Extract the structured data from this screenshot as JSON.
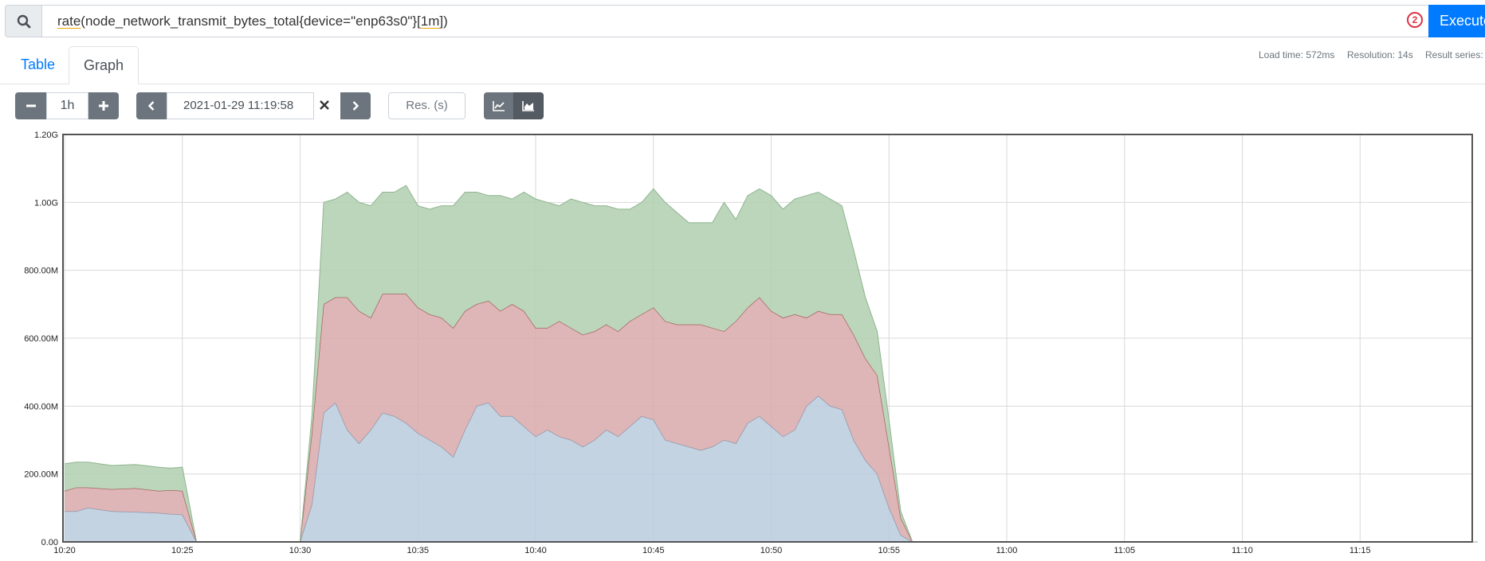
{
  "query": {
    "parts": [
      "rate",
      "(node_network_transmit_bytes_total{device=\"enp63s0\"}[",
      "1m",
      "])"
    ],
    "error_count": "2",
    "execute_label": "Execute"
  },
  "tabs": [
    {
      "label": "Table"
    },
    {
      "label": "Graph"
    }
  ],
  "stats": {
    "load_time": "Load time: 572ms",
    "resolution": "Resolution: 14s",
    "result_series": "Result series:"
  },
  "controls": {
    "range": "1h",
    "end_time": "2021-01-29 11:19:58",
    "res_placeholder": "Res. (s)"
  },
  "icons": [
    "search-icon",
    "minus-icon",
    "plus-icon",
    "chevron-left-icon",
    "close-icon",
    "chevron-right-icon",
    "line-chart-icon",
    "area-chart-icon"
  ],
  "colors": {
    "execute": "#007bff",
    "error": "#dc3545"
  },
  "chart_data": {
    "type": "area",
    "stacked": true,
    "y_ticks": [
      "0.00",
      "200.00M",
      "400.00M",
      "600.00M",
      "800.00M",
      "1.00G",
      "1.20G"
    ],
    "ylim": [
      0,
      1200000000.0
    ],
    "x_ticks": [
      "10:20",
      "10:25",
      "10:30",
      "10:35",
      "10:40",
      "10:45",
      "10:50",
      "10:55",
      "11:00",
      "11:05",
      "11:10",
      "11:15"
    ],
    "xlim_minutes": [
      0,
      60
    ],
    "grid": true,
    "series": [
      {
        "color": "#b8cbdd",
        "stroke": "#7f93aa",
        "points": [
          [
            0,
            90000000.0
          ],
          [
            0.5,
            90000000.0
          ],
          [
            1,
            100000000.0
          ],
          [
            2,
            90000000.0
          ],
          [
            3,
            88000000.0
          ],
          [
            4,
            85000000.0
          ],
          [
            4.5,
            82000000.0
          ],
          [
            5,
            80000000.0
          ],
          [
            5.6,
            0
          ],
          [
            10,
            0
          ],
          [
            10.5,
            110000000.0
          ],
          [
            11,
            380000000.0
          ],
          [
            11.5,
            410000000.0
          ],
          [
            12,
            330000000.0
          ],
          [
            12.5,
            290000000.0
          ],
          [
            13,
            330000000.0
          ],
          [
            13.5,
            380000000.0
          ],
          [
            14,
            370000000.0
          ],
          [
            14.5,
            350000000.0
          ],
          [
            15,
            320000000.0
          ],
          [
            15.5,
            300000000.0
          ],
          [
            16,
            280000000.0
          ],
          [
            16.5,
            250000000.0
          ],
          [
            17,
            330000000.0
          ],
          [
            17.5,
            400000000.0
          ],
          [
            18,
            410000000.0
          ],
          [
            18.5,
            370000000.0
          ],
          [
            19,
            370000000.0
          ],
          [
            19.5,
            340000000.0
          ],
          [
            20,
            310000000.0
          ],
          [
            20.5,
            330000000.0
          ],
          [
            21,
            310000000.0
          ],
          [
            21.5,
            300000000.0
          ],
          [
            22,
            280000000.0
          ],
          [
            22.5,
            300000000.0
          ],
          [
            23,
            330000000.0
          ],
          [
            23.5,
            310000000.0
          ],
          [
            24,
            340000000.0
          ],
          [
            24.5,
            370000000.0
          ],
          [
            25,
            360000000.0
          ],
          [
            25.5,
            300000000.0
          ],
          [
            26,
            290000000.0
          ],
          [
            26.5,
            280000000.0
          ],
          [
            27,
            270000000.0
          ],
          [
            27.5,
            280000000.0
          ],
          [
            28,
            300000000.0
          ],
          [
            28.5,
            290000000.0
          ],
          [
            29,
            350000000.0
          ],
          [
            29.5,
            370000000.0
          ],
          [
            30,
            340000000.0
          ],
          [
            30.5,
            310000000.0
          ],
          [
            31,
            330000000.0
          ],
          [
            31.5,
            400000000.0
          ],
          [
            32,
            430000000.0
          ],
          [
            32.5,
            400000000.0
          ],
          [
            33,
            390000000.0
          ],
          [
            33.5,
            300000000.0
          ],
          [
            34,
            240000000.0
          ],
          [
            34.5,
            200000000.0
          ],
          [
            35,
            100000000.0
          ],
          [
            35.5,
            20000000.0
          ],
          [
            36,
            0
          ],
          [
            60,
            0
          ]
        ]
      },
      {
        "color": "#d8a9aa",
        "stroke": "#a34a4a",
        "points": [
          [
            0,
            60000000.0
          ],
          [
            0.5,
            70000000.0
          ],
          [
            1,
            60000000.0
          ],
          [
            2,
            65000000.0
          ],
          [
            3,
            70000000.0
          ],
          [
            4,
            65000000.0
          ],
          [
            4.5,
            70000000.0
          ],
          [
            5,
            70000000.0
          ],
          [
            5.6,
            0
          ],
          [
            10,
            0
          ],
          [
            10.5,
            210000000.0
          ],
          [
            11,
            320000000.0
          ],
          [
            11.5,
            310000000.0
          ],
          [
            12,
            390000000.0
          ],
          [
            12.5,
            390000000.0
          ],
          [
            13,
            330000000.0
          ],
          [
            13.5,
            350000000.0
          ],
          [
            14,
            360000000.0
          ],
          [
            14.5,
            380000000.0
          ],
          [
            15,
            370000000.0
          ],
          [
            15.5,
            370000000.0
          ],
          [
            16,
            380000000.0
          ],
          [
            16.5,
            380000000.0
          ],
          [
            17,
            350000000.0
          ],
          [
            17.5,
            300000000.0
          ],
          [
            18,
            300000000.0
          ],
          [
            18.5,
            310000000.0
          ],
          [
            19,
            330000000.0
          ],
          [
            19.5,
            340000000.0
          ],
          [
            20,
            320000000.0
          ],
          [
            20.5,
            300000000.0
          ],
          [
            21,
            340000000.0
          ],
          [
            21.5,
            330000000.0
          ],
          [
            22,
            330000000.0
          ],
          [
            22.5,
            320000000.0
          ],
          [
            23,
            310000000.0
          ],
          [
            23.5,
            310000000.0
          ],
          [
            24,
            310000000.0
          ],
          [
            24.5,
            300000000.0
          ],
          [
            25,
            330000000.0
          ],
          [
            25.5,
            350000000.0
          ],
          [
            26,
            350000000.0
          ],
          [
            26.5,
            360000000.0
          ],
          [
            27,
            370000000.0
          ],
          [
            27.5,
            350000000.0
          ],
          [
            28,
            320000000.0
          ],
          [
            28.5,
            360000000.0
          ],
          [
            29,
            340000000.0
          ],
          [
            29.5,
            350000000.0
          ],
          [
            30,
            340000000.0
          ],
          [
            30.5,
            350000000.0
          ],
          [
            31,
            340000000.0
          ],
          [
            31.5,
            260000000.0
          ],
          [
            32,
            250000000.0
          ],
          [
            32.5,
            270000000.0
          ],
          [
            33,
            280000000.0
          ],
          [
            33.5,
            310000000.0
          ],
          [
            34,
            300000000.0
          ],
          [
            34.5,
            290000000.0
          ],
          [
            35,
            180000000.0
          ],
          [
            35.5,
            50000000.0
          ],
          [
            36,
            0
          ],
          [
            60,
            0
          ]
        ]
      },
      {
        "color": "#b0cfb0",
        "stroke": "#8fb48f",
        "points": [
          [
            0,
            80000000.0
          ],
          [
            0.5,
            75000000.0
          ],
          [
            1,
            75000000.0
          ],
          [
            2,
            70000000.0
          ],
          [
            3,
            70000000.0
          ],
          [
            4,
            70000000.0
          ],
          [
            4.5,
            65000000.0
          ],
          [
            5,
            70000000.0
          ],
          [
            5.6,
            0
          ],
          [
            10,
            0
          ],
          [
            10.5,
            50000000.0
          ],
          [
            11,
            300000000.0
          ],
          [
            11.5,
            290000000.0
          ],
          [
            12,
            310000000.0
          ],
          [
            12.5,
            320000000.0
          ],
          [
            13,
            330000000.0
          ],
          [
            13.5,
            300000000.0
          ],
          [
            14,
            300000000.0
          ],
          [
            14.5,
            320000000.0
          ],
          [
            15,
            300000000.0
          ],
          [
            15.5,
            310000000.0
          ],
          [
            16,
            330000000.0
          ],
          [
            16.5,
            360000000.0
          ],
          [
            17,
            350000000.0
          ],
          [
            17.5,
            330000000.0
          ],
          [
            18,
            310000000.0
          ],
          [
            18.5,
            340000000.0
          ],
          [
            19,
            310000000.0
          ],
          [
            19.5,
            350000000.0
          ],
          [
            20,
            380000000.0
          ],
          [
            20.5,
            370000000.0
          ],
          [
            21,
            340000000.0
          ],
          [
            21.5,
            380000000.0
          ],
          [
            22,
            390000000.0
          ],
          [
            22.5,
            370000000.0
          ],
          [
            23,
            350000000.0
          ],
          [
            23.5,
            360000000.0
          ],
          [
            24,
            330000000.0
          ],
          [
            24.5,
            330000000.0
          ],
          [
            25,
            350000000.0
          ],
          [
            25.5,
            350000000.0
          ],
          [
            26,
            330000000.0
          ],
          [
            26.5,
            300000000.0
          ],
          [
            27,
            300000000.0
          ],
          [
            27.5,
            310000000.0
          ],
          [
            28,
            380000000.0
          ],
          [
            28.5,
            300000000.0
          ],
          [
            29,
            330000000.0
          ],
          [
            29.5,
            320000000.0
          ],
          [
            30,
            340000000.0
          ],
          [
            30.5,
            320000000.0
          ],
          [
            31,
            340000000.0
          ],
          [
            31.5,
            360000000.0
          ],
          [
            32,
            350000000.0
          ],
          [
            32.5,
            340000000.0
          ],
          [
            33,
            320000000.0
          ],
          [
            33.5,
            250000000.0
          ],
          [
            34,
            180000000.0
          ],
          [
            34.5,
            130000000.0
          ],
          [
            35,
            80000000.0
          ],
          [
            35.5,
            20000000.0
          ],
          [
            36,
            0
          ],
          [
            60,
            0
          ]
        ]
      }
    ]
  }
}
